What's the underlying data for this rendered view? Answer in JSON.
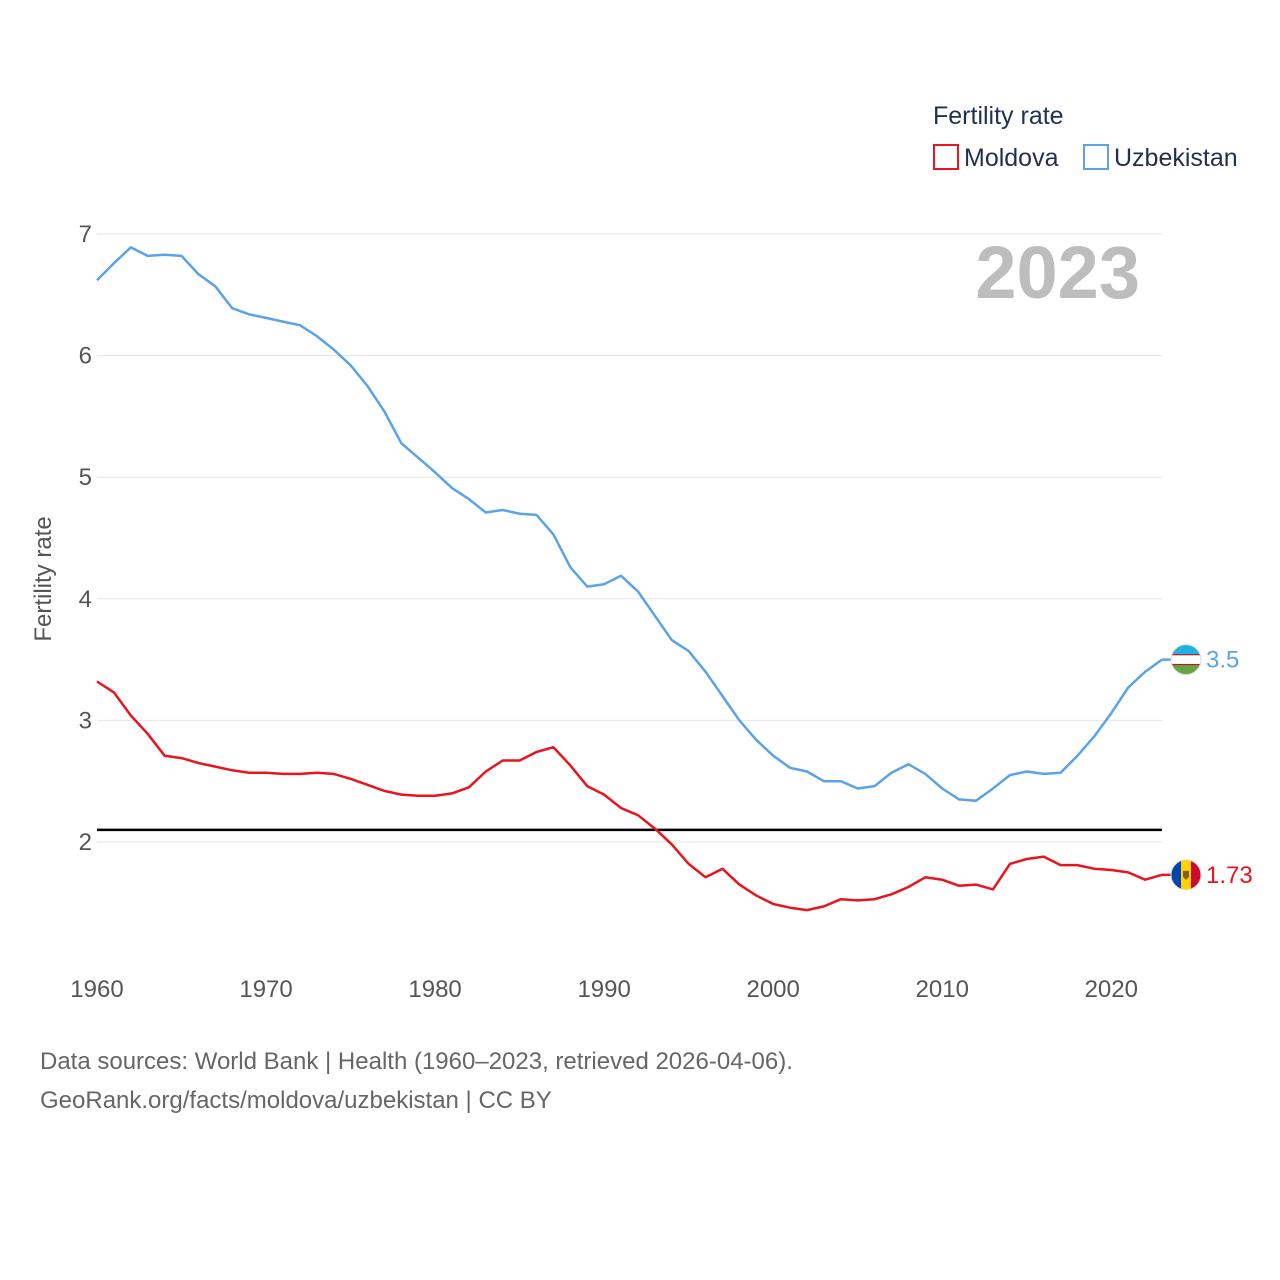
{
  "chart_data": {
    "type": "line",
    "title": "",
    "ylabel": "Fertility rate",
    "xlabel": "",
    "ylim": [
      1.0,
      7.0
    ],
    "xlim": [
      1960,
      2023
    ],
    "y_ticks": [
      2,
      3,
      4,
      5,
      6,
      7
    ],
    "x_ticks": [
      1960,
      1970,
      1980,
      1990,
      2000,
      2010,
      2020
    ],
    "reference_line": 2.1,
    "current_year": "2023",
    "legend": {
      "title": "Fertility rate",
      "position": "top-right",
      "entries": [
        "Moldova",
        "Uzbekistan"
      ]
    },
    "x": [
      1960,
      1961,
      1962,
      1963,
      1964,
      1965,
      1966,
      1967,
      1968,
      1969,
      1970,
      1971,
      1972,
      1973,
      1974,
      1975,
      1976,
      1977,
      1978,
      1979,
      1980,
      1981,
      1982,
      1983,
      1984,
      1985,
      1986,
      1987,
      1988,
      1989,
      1990,
      1991,
      1992,
      1993,
      1994,
      1995,
      1996,
      1997,
      1998,
      1999,
      2000,
      2001,
      2002,
      2003,
      2004,
      2005,
      2006,
      2007,
      2008,
      2009,
      2010,
      2011,
      2012,
      2013,
      2014,
      2015,
      2016,
      2017,
      2018,
      2019,
      2020,
      2021,
      2022,
      2023
    ],
    "series": [
      {
        "name": "Moldova",
        "color": "#e8141e",
        "end_label": "1.73",
        "flag": "moldova-flag-icon",
        "values": [
          3.32,
          3.23,
          3.04,
          2.89,
          2.71,
          2.69,
          2.65,
          2.62,
          2.59,
          2.57,
          2.57,
          2.56,
          2.56,
          2.57,
          2.56,
          2.52,
          2.47,
          2.42,
          2.39,
          2.38,
          2.38,
          2.4,
          2.45,
          2.58,
          2.67,
          2.67,
          2.74,
          2.78,
          2.63,
          2.46,
          2.39,
          2.28,
          2.22,
          2.11,
          1.98,
          1.82,
          1.71,
          1.78,
          1.65,
          1.56,
          1.49,
          1.46,
          1.44,
          1.47,
          1.53,
          1.52,
          1.53,
          1.57,
          1.63,
          1.71,
          1.69,
          1.64,
          1.65,
          1.61,
          1.82,
          1.86,
          1.88,
          1.81,
          1.81,
          1.78,
          1.77,
          1.75,
          1.69,
          1.73
        ]
      },
      {
        "name": "Uzbekistan",
        "color": "#5ba3e6",
        "end_label": "3.5",
        "flag": "uzbekistan-flag-icon",
        "values": [
          6.62,
          6.76,
          6.89,
          6.82,
          6.83,
          6.82,
          6.67,
          6.57,
          6.39,
          6.34,
          6.31,
          6.28,
          6.25,
          6.16,
          6.05,
          5.92,
          5.75,
          5.54,
          5.28,
          5.16,
          5.04,
          4.91,
          4.82,
          4.71,
          4.73,
          4.7,
          4.69,
          4.53,
          4.26,
          4.1,
          4.12,
          4.19,
          4.06,
          3.86,
          3.66,
          3.57,
          3.4,
          3.2,
          3.0,
          2.84,
          2.71,
          2.61,
          2.58,
          2.5,
          2.5,
          2.44,
          2.46,
          2.57,
          2.64,
          2.56,
          2.44,
          2.35,
          2.34,
          2.44,
          2.55,
          2.58,
          2.56,
          2.57,
          2.71,
          2.87,
          3.06,
          3.27,
          3.4,
          3.5
        ]
      }
    ]
  },
  "footer": {
    "line1": "Data sources: World Bank | Health (1960–2023, retrieved 2026-04-06).",
    "line2": "GeoRank.org/facts/moldova/uzbekistan | CC BY"
  }
}
